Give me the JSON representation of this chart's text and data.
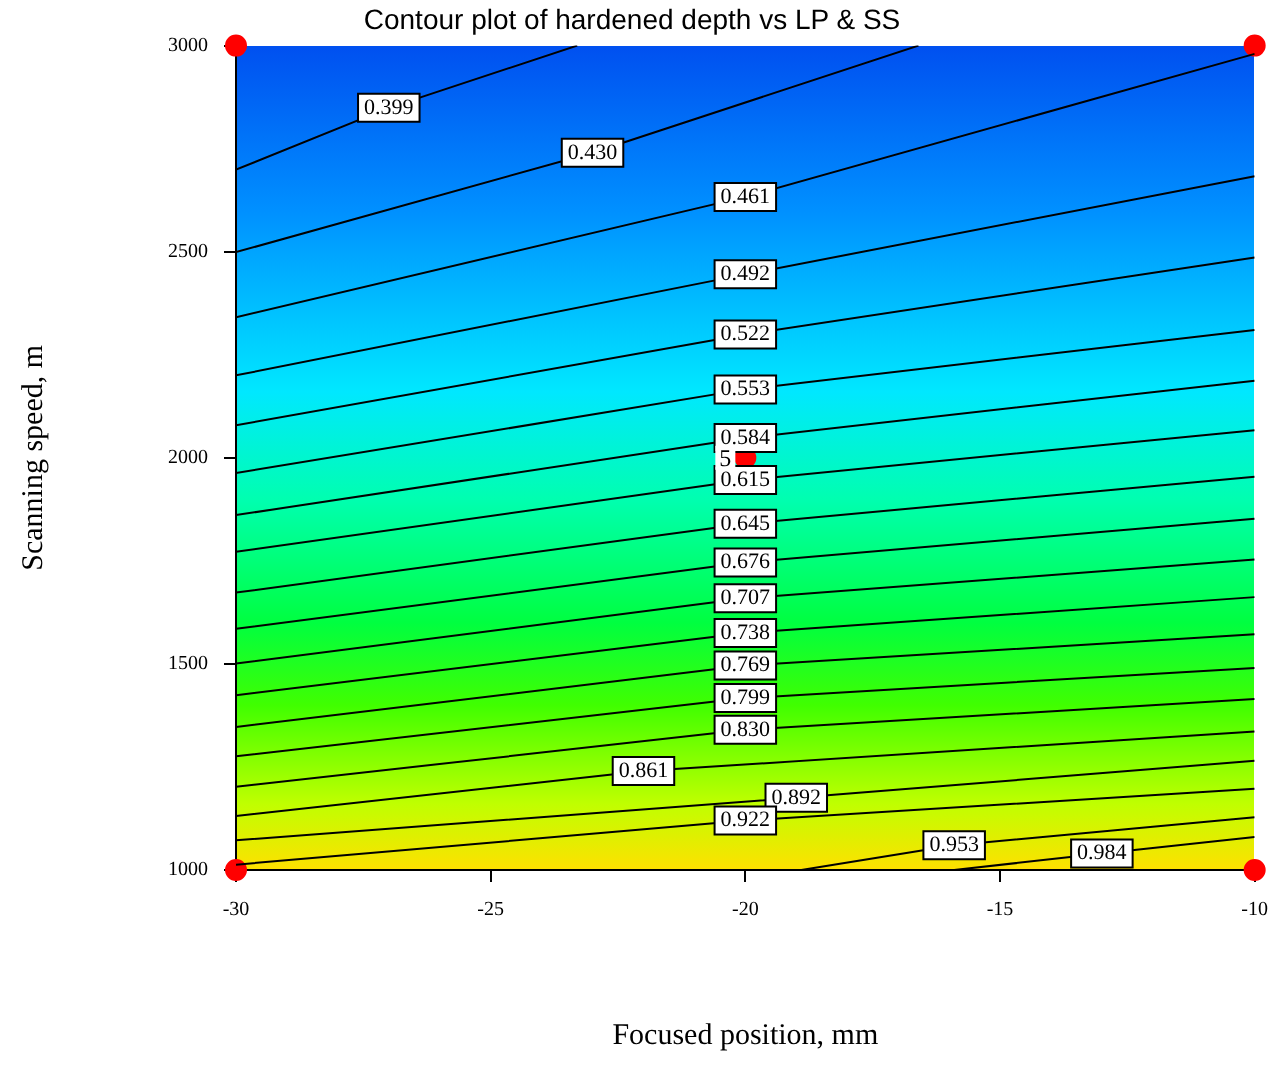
{
  "chart_data": {
    "type": "line",
    "title": "Contour plot of hardened depth vs LP & SS",
    "xlabel": "Focused position, mm",
    "ylabel": "Scanning speed, m",
    "xlim": [
      -30,
      -10
    ],
    "xticks": [
      -30,
      -25,
      -20,
      -15,
      -10
    ],
    "ylim": [
      1000,
      3000
    ],
    "yticks": [
      1000,
      1500,
      2000,
      2500,
      3000
    ],
    "legend": false,
    "series": [
      {
        "name": "0.399",
        "color": "#000000",
        "x": [
          -30,
          -27,
          -23.3
        ],
        "values": [
          2699,
          2849,
          3000
        ]
      },
      {
        "name": "0.430",
        "color": "#000000",
        "x": [
          -30,
          -23,
          -16.6
        ],
        "values": [
          2499,
          2740,
          3000
        ]
      },
      {
        "name": "0.461",
        "color": "#000000",
        "x": [
          -30,
          -20,
          -10
        ],
        "values": [
          2341,
          2633,
          2980
        ]
      },
      {
        "name": "0.492",
        "color": "#000000",
        "x": [
          -30,
          -20,
          -10
        ],
        "values": [
          2200,
          2445,
          2683
        ]
      },
      {
        "name": "0.522",
        "color": "#000000",
        "x": [
          -30,
          -20,
          -10
        ],
        "values": [
          2079,
          2299,
          2486
        ]
      },
      {
        "name": "0.553",
        "color": "#000000",
        "x": [
          -30,
          -20,
          -10
        ],
        "values": [
          1963,
          2166,
          2310
        ]
      },
      {
        "name": "0.584",
        "color": "#000000",
        "x": [
          -30,
          -20,
          -10
        ],
        "values": [
          1861,
          2048,
          2187
        ]
      },
      {
        "name": "0.615",
        "color": "#000000",
        "x": [
          -30,
          -20,
          -10
        ],
        "values": [
          1772,
          1946,
          2067
        ]
      },
      {
        "name": "0.645",
        "color": "#000000",
        "x": [
          -30,
          -20,
          -10
        ],
        "values": [
          1673,
          1840,
          1954
        ]
      },
      {
        "name": "0.676",
        "color": "#000000",
        "x": [
          -30,
          -20,
          -10
        ],
        "values": [
          1585,
          1746,
          1852
        ]
      },
      {
        "name": "0.707",
        "color": "#000000",
        "x": [
          -30,
          -20,
          -10
        ],
        "values": [
          1501,
          1659,
          1753
        ]
      },
      {
        "name": "0.738",
        "color": "#000000",
        "x": [
          -30,
          -20,
          -10
        ],
        "values": [
          1424,
          1575,
          1662
        ]
      },
      {
        "name": "0.769",
        "color": "#000000",
        "x": [
          -30,
          -20,
          -10
        ],
        "values": [
          1347,
          1496,
          1572
        ]
      },
      {
        "name": "0.799",
        "color": "#000000",
        "x": [
          -30,
          -20,
          -10
        ],
        "values": [
          1276,
          1417,
          1490
        ]
      },
      {
        "name": "0.830",
        "color": "#000000",
        "x": [
          -30,
          -20,
          -10
        ],
        "values": [
          1202,
          1340,
          1415
        ]
      },
      {
        "name": "0.861",
        "color": "#000000",
        "x": [
          -30,
          -22,
          -10
        ],
        "values": [
          1131,
          1240,
          1336
        ]
      },
      {
        "name": "0.892",
        "color": "#000000",
        "x": [
          -30,
          -19,
          -10
        ],
        "values": [
          1072,
          1175,
          1265
        ]
      },
      {
        "name": "0.922",
        "color": "#000000",
        "x": [
          -30,
          -20,
          -10
        ],
        "values": [
          1013,
          1120,
          1197
        ]
      },
      {
        "name": "0.953",
        "color": "#000000",
        "x": [
          -18.9,
          -15.9,
          -10
        ],
        "values": [
          1000,
          1060,
          1128
        ]
      },
      {
        "name": "0.984",
        "color": "#000000",
        "x": [
          -15.9,
          -13,
          -10
        ],
        "values": [
          1000,
          1040,
          1080
        ]
      },
      {
        "type": "scatter",
        "color": "#ff0000",
        "marker": "circle",
        "x": [
          -30,
          -30,
          -10,
          -10,
          -20
        ],
        "values": [
          1000,
          3000,
          1000,
          3000,
          2000
        ]
      }
    ],
    "annotations": [
      {
        "text": "5",
        "x": -20,
        "y": 2000
      }
    ]
  }
}
